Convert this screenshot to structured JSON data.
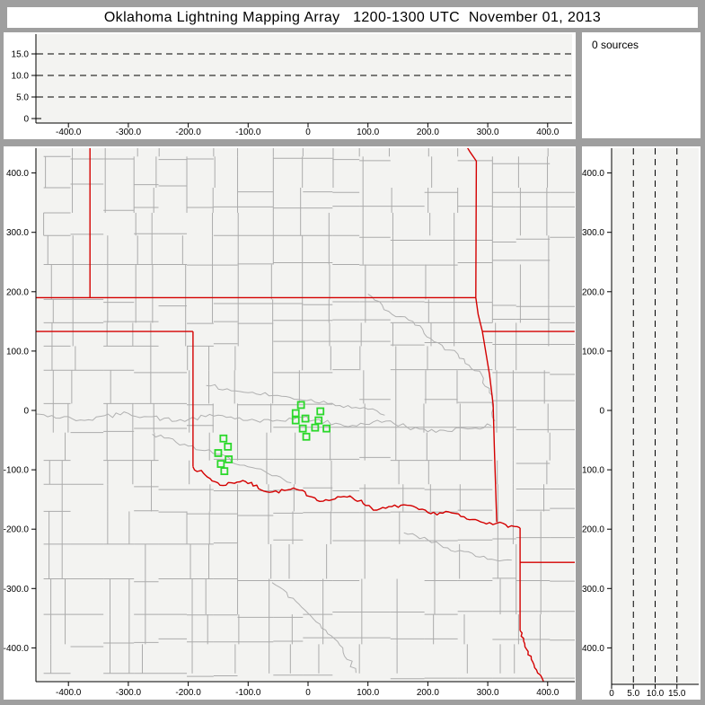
{
  "window": {
    "title": "Oklahoma Lightning Mapping Array   1200-1300 UTC  November 01, 2013"
  },
  "sources_box": {
    "text": "0 sources",
    "count": 0
  },
  "colors": {
    "frame": "#9f9f9f",
    "panel": "#ffffff",
    "plot_bg": "#f3f3f1",
    "axis": "#000000",
    "county": "#ababab",
    "river": "#b0b0b0",
    "state_border": "#d40000",
    "station": "#2bd82b",
    "dash": "#000000"
  },
  "chart_data": [
    {
      "id": "alt_ew",
      "type": "scatter",
      "description": "Altitude (km) vs east-west distance (km) cross-section; empty (0 sources)",
      "x_ticks": [
        [
          "-400.0",
          -400
        ],
        [
          "-300.0",
          -300
        ],
        [
          "-200.0",
          -200
        ],
        [
          "-100.0",
          -100
        ],
        [
          "0",
          0
        ],
        [
          "100.0",
          100
        ],
        [
          "200.0",
          200
        ],
        [
          "300.0",
          300
        ],
        [
          "400.0",
          400
        ]
      ],
      "y_ticks": [
        [
          "15.0",
          15
        ],
        [
          "10.0",
          10
        ],
        [
          "5.0",
          5
        ],
        [
          "0",
          0
        ]
      ],
      "dashed_y": [
        5,
        10,
        15
      ],
      "xlim": [
        -455,
        440
      ],
      "ylim": [
        0,
        20
      ],
      "grid": "dashed",
      "points": []
    },
    {
      "id": "plan_view",
      "type": "scatter",
      "description": "Plan view map, distances in km from network center; county lines gray, state borders red, LMA stations green squares",
      "x_ticks": [
        [
          "-400.0",
          -400
        ],
        [
          "-300.0",
          -300
        ],
        [
          "-200.0",
          -200
        ],
        [
          "-100.0",
          -100
        ],
        [
          "0",
          0
        ],
        [
          "100.0",
          100
        ],
        [
          "200.0",
          200
        ],
        [
          "300.0",
          300
        ],
        [
          "400.0",
          400
        ]
      ],
      "y_ticks": [
        [
          "400.0",
          400
        ],
        [
          "300.0",
          300
        ],
        [
          "200.0",
          200
        ],
        [
          "100.0",
          100
        ],
        [
          "0",
          0
        ],
        [
          "-100.0",
          -100
        ],
        [
          "-200.0",
          -200
        ],
        [
          "-300.0",
          -300
        ],
        [
          "-400.0",
          -400
        ]
      ],
      "xlim": [
        -455,
        440
      ],
      "ylim": [
        -465,
        445
      ],
      "county_grid": true,
      "stations_km": [
        [
          -11.8,
          9.2
        ],
        [
          20.6,
          -1.5
        ],
        [
          -20.6,
          -4.6
        ],
        [
          -4.4,
          -13.7
        ],
        [
          17.6,
          -16.8
        ],
        [
          -20.6,
          -16.8
        ],
        [
          -8.8,
          -30.5
        ],
        [
          11.8,
          -29.0
        ],
        [
          30.9,
          -30.5
        ],
        [
          -2.9,
          -44.3
        ],
        [
          -141.2,
          -47.3
        ],
        [
          -133.8,
          -61.1
        ],
        [
          -150.0,
          -71.8
        ],
        [
          -132.4,
          -82.4
        ],
        [
          -145.6,
          -90.1
        ],
        [
          -139.7,
          -102.3
        ]
      ],
      "state_borders_km": [
        {
          "name": "co-ks-border",
          "pts": [
            [
              -364,
              445
            ],
            [
              -364,
              190
            ]
          ]
        },
        {
          "name": "ks-ok-border-37N",
          "pts": [
            [
              -455,
              190
            ],
            [
              280,
              190
            ]
          ]
        },
        {
          "name": "ks-mo-border",
          "pts": [
            [
              264,
              446
            ],
            [
              270,
              436
            ],
            [
              281,
              420
            ],
            [
              280,
              190
            ]
          ]
        },
        {
          "name": "ok-mo-border",
          "pts": [
            [
              280,
              190
            ],
            [
              284,
              162
            ],
            [
              291,
              133
            ]
          ]
        },
        {
          "name": "mo-ar-border-36.5N",
          "pts": [
            [
              291,
              133
            ],
            [
              445,
              133
            ]
          ]
        },
        {
          "name": "ok-ar-border",
          "pts": [
            [
              291,
              133
            ],
            [
              303,
              60
            ],
            [
              309,
              10
            ],
            [
              311,
              -60
            ],
            [
              315,
              -188
            ]
          ]
        },
        {
          "name": "tx-panhandle-36.5N",
          "pts": [
            [
              -455,
              133
            ],
            [
              -192,
              133
            ]
          ]
        },
        {
          "name": "tx-ok-border-100W",
          "pts": [
            [
              -192,
              133
            ],
            [
              -192,
              -95
            ]
          ]
        },
        {
          "name": "red-river-tx-ok",
          "wiggle": 3,
          "pts": [
            [
              -192,
              -95
            ],
            [
              -147,
              -126
            ],
            [
              -109,
              -118
            ],
            [
              -64,
              -138
            ],
            [
              -19,
              -133
            ],
            [
              25,
              -153
            ],
            [
              70,
              -144
            ],
            [
              115,
              -168
            ],
            [
              160,
              -159
            ],
            [
              205,
              -174
            ],
            [
              235,
              -171
            ],
            [
              265,
              -183
            ],
            [
              303,
              -189
            ],
            [
              315,
              -190
            ],
            [
              354,
              -198
            ]
          ]
        },
        {
          "name": "tx-ar-border",
          "pts": [
            [
              354,
              -198
            ],
            [
              354,
              -371
            ]
          ]
        },
        {
          "name": "ar-la-border-33N",
          "pts": [
            [
              354,
              -256
            ],
            [
              447,
              -256
            ]
          ]
        },
        {
          "name": "tx-la-border",
          "wiggle": 2,
          "pts": [
            [
              354,
              -371
            ],
            [
              362,
              -398
            ],
            [
              377,
              -428
            ],
            [
              394,
              -460
            ]
          ]
        }
      ],
      "rivers_km": [
        {
          "name": "arkansas-river",
          "pts": [
            [
              100,
              196
            ],
            [
              140,
              162
            ],
            [
              175,
              150
            ],
            [
              210,
              116
            ],
            [
              250,
              95
            ],
            [
              290,
              60
            ],
            [
              308,
              18
            ],
            [
              312,
              -18
            ]
          ]
        },
        {
          "name": "canadian-river",
          "pts": [
            [
              -455,
              -6
            ],
            [
              -380,
              -16
            ],
            [
              -300,
              -5
            ],
            [
              -220,
              -18
            ],
            [
              -150,
              -8
            ],
            [
              -80,
              -20
            ],
            [
              -10,
              -12
            ],
            [
              60,
              -26
            ],
            [
              130,
              -18
            ],
            [
              200,
              -36
            ],
            [
              260,
              -30
            ],
            [
              306,
              -26
            ]
          ]
        },
        {
          "name": "north-canadian-river",
          "pts": [
            [
              -170,
              42
            ],
            [
              -100,
              30
            ],
            [
              -30,
              22
            ],
            [
              40,
              12
            ],
            [
              100,
              2
            ],
            [
              128,
              -8
            ]
          ]
        },
        {
          "name": "washita-river",
          "pts": [
            [
              -260,
              -40
            ],
            [
              -200,
              -60
            ],
            [
              -152,
              -74
            ],
            [
              -100,
              -95
            ],
            [
              -60,
              -110
            ],
            [
              -28,
              -122
            ]
          ]
        },
        {
          "name": "sulphur-river",
          "pts": [
            [
              160,
              -206
            ],
            [
              220,
              -226
            ],
            [
              280,
              -246
            ],
            [
              340,
              -252
            ]
          ]
        },
        {
          "name": "trinity-river",
          "pts": [
            [
              -60,
              -290
            ],
            [
              -20,
              -322
            ],
            [
              20,
              -360
            ],
            [
              58,
              -400
            ],
            [
              80,
              -442
            ]
          ]
        }
      ],
      "points": []
    },
    {
      "id": "alt_ns",
      "type": "scatter",
      "description": "North-south distance (km) vs altitude (km) cross-section; empty (0 sources)",
      "x_ticks": [
        [
          "0",
          0
        ],
        [
          "5.0",
          5
        ],
        [
          "10.0",
          10
        ],
        [
          "15.0",
          15
        ]
      ],
      "y_ticks": [
        [
          "400.0",
          400
        ],
        [
          "300.0",
          300
        ],
        [
          "200.0",
          200
        ],
        [
          "100.0",
          100
        ],
        [
          "0",
          0
        ],
        [
          "-100.0",
          -100
        ],
        [
          "-200.0",
          -200
        ],
        [
          "-300.0",
          -300
        ],
        [
          "-400.0",
          -400
        ]
      ],
      "dashed_x": [
        5,
        10,
        15
      ],
      "xlim": [
        0,
        20
      ],
      "ylim": [
        -465,
        445
      ],
      "grid": "dashed",
      "points": []
    }
  ]
}
